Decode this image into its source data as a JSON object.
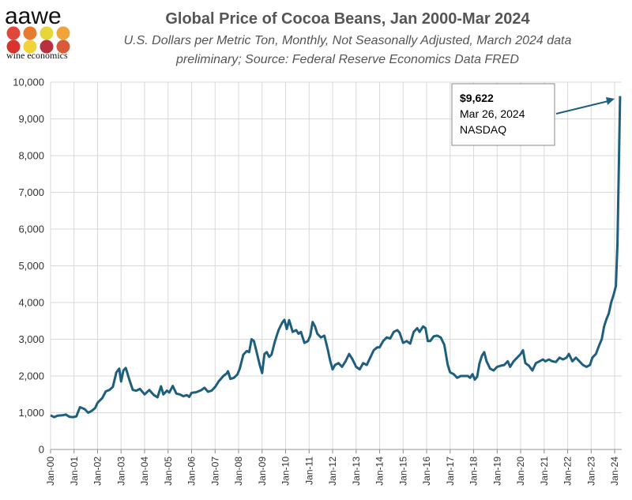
{
  "logo": {
    "text": "aawe",
    "subtitle": "wine economics",
    "dot_colors": [
      "#e0483c",
      "#e67b2f",
      "#e6d63a",
      "#f0a43a",
      "#d9332d",
      "#f2d23a",
      "#b8323e",
      "#d85a3a"
    ]
  },
  "colors": {
    "line": "#1f5f7e",
    "grid": "#d9d9d9",
    "plot_bg": "#ffffff",
    "arrow": "#1f5f7e"
  },
  "chart_data": {
    "type": "line",
    "title": "Global Price of Cocoa Beans, Jan 2000-Mar 2024",
    "subtitle_lines": [
      "U.S. Dollars per Metric Ton, Monthly, Not Seasonally Adjusted, March 2024 data",
      "preliminary; Source: Federal Reserve Economics Data FRED"
    ],
    "xlabel": "",
    "ylabel": "",
    "xlim": [
      2000.0,
      2024.3
    ],
    "ylim": [
      0,
      10000
    ],
    "yticks": [
      0,
      1000,
      2000,
      3000,
      4000,
      5000,
      6000,
      7000,
      8000,
      9000,
      10000
    ],
    "ytick_labels": [
      "0",
      "1,000",
      "2,000",
      "3,000",
      "4,000",
      "5,000",
      "6,000",
      "7,000",
      "8,000",
      "9,000",
      "10,000"
    ],
    "xticks": [
      2000,
      2001,
      2002,
      2003,
      2004,
      2005,
      2006,
      2007,
      2008,
      2009,
      2010,
      2011,
      2012,
      2013,
      2014,
      2015,
      2016,
      2017,
      2018,
      2019,
      2020,
      2021,
      2022,
      2023,
      2024
    ],
    "xtick_labels": [
      "Jan-00",
      "Jan-01",
      "Jan-02",
      "Jan-03",
      "Jan-04",
      "Jan-05",
      "Jan-06",
      "Jan-07",
      "Jan-08",
      "Jan-09",
      "Jan-10",
      "Jan-11",
      "Jan-12",
      "Jan-13",
      "Jan-14",
      "Jan-15",
      "Jan-16",
      "Jan-17",
      "Jan-18",
      "Jan-19",
      "Jan-20",
      "Jan-21",
      "Jan-22",
      "Jan-23",
      "Jan-24"
    ],
    "grid": true,
    "series": [
      {
        "name": "Global Price of Cocoa Beans",
        "points": [
          [
            2000.0,
            930
          ],
          [
            2000.15,
            880
          ],
          [
            2000.3,
            920
          ],
          [
            2000.5,
            930
          ],
          [
            2000.65,
            950
          ],
          [
            2000.8,
            890
          ],
          [
            2000.95,
            880
          ],
          [
            2001.1,
            900
          ],
          [
            2001.25,
            1150
          ],
          [
            2001.45,
            1100
          ],
          [
            2001.6,
            1000
          ],
          [
            2001.75,
            1050
          ],
          [
            2001.9,
            1130
          ],
          [
            2002.0,
            1270
          ],
          [
            2002.2,
            1400
          ],
          [
            2002.35,
            1580
          ],
          [
            2002.5,
            1620
          ],
          [
            2002.65,
            1700
          ],
          [
            2002.8,
            2100
          ],
          [
            2002.92,
            2200
          ],
          [
            2003.0,
            1850
          ],
          [
            2003.1,
            2150
          ],
          [
            2003.2,
            2220
          ],
          [
            2003.35,
            1900
          ],
          [
            2003.5,
            1620
          ],
          [
            2003.65,
            1600
          ],
          [
            2003.8,
            1650
          ],
          [
            2004.0,
            1500
          ],
          [
            2004.2,
            1620
          ],
          [
            2004.4,
            1480
          ],
          [
            2004.55,
            1420
          ],
          [
            2004.7,
            1720
          ],
          [
            2004.8,
            1500
          ],
          [
            2004.95,
            1600
          ],
          [
            2005.05,
            1550
          ],
          [
            2005.2,
            1730
          ],
          [
            2005.35,
            1520
          ],
          [
            2005.5,
            1500
          ],
          [
            2005.65,
            1450
          ],
          [
            2005.8,
            1480
          ],
          [
            2005.9,
            1430
          ],
          [
            2006.0,
            1540
          ],
          [
            2006.2,
            1560
          ],
          [
            2006.4,
            1610
          ],
          [
            2006.55,
            1680
          ],
          [
            2006.7,
            1570
          ],
          [
            2006.85,
            1600
          ],
          [
            2007.0,
            1700
          ],
          [
            2007.15,
            1850
          ],
          [
            2007.35,
            2000
          ],
          [
            2007.5,
            2070
          ],
          [
            2007.55,
            2130
          ],
          [
            2007.65,
            1920
          ],
          [
            2007.8,
            1950
          ],
          [
            2007.95,
            2040
          ],
          [
            2008.05,
            2200
          ],
          [
            2008.2,
            2580
          ],
          [
            2008.35,
            2680
          ],
          [
            2008.45,
            2650
          ],
          [
            2008.55,
            3000
          ],
          [
            2008.65,
            2950
          ],
          [
            2008.75,
            2700
          ],
          [
            2008.9,
            2300
          ],
          [
            2009.0,
            2080
          ],
          [
            2009.1,
            2600
          ],
          [
            2009.2,
            2650
          ],
          [
            2009.3,
            2520
          ],
          [
            2009.4,
            2580
          ],
          [
            2009.55,
            2950
          ],
          [
            2009.7,
            3250
          ],
          [
            2009.85,
            3450
          ],
          [
            2009.95,
            3530
          ],
          [
            2010.05,
            3280
          ],
          [
            2010.15,
            3520
          ],
          [
            2010.3,
            3200
          ],
          [
            2010.45,
            3250
          ],
          [
            2010.55,
            3150
          ],
          [
            2010.65,
            3200
          ],
          [
            2010.8,
            2900
          ],
          [
            2010.95,
            2950
          ],
          [
            2011.05,
            3100
          ],
          [
            2011.15,
            3470
          ],
          [
            2011.25,
            3350
          ],
          [
            2011.35,
            3150
          ],
          [
            2011.5,
            3050
          ],
          [
            2011.65,
            3100
          ],
          [
            2011.8,
            2700
          ],
          [
            2011.9,
            2400
          ],
          [
            2012.0,
            2180
          ],
          [
            2012.1,
            2300
          ],
          [
            2012.25,
            2350
          ],
          [
            2012.4,
            2250
          ],
          [
            2012.55,
            2400
          ],
          [
            2012.7,
            2600
          ],
          [
            2012.85,
            2450
          ],
          [
            2013.0,
            2250
          ],
          [
            2013.15,
            2180
          ],
          [
            2013.3,
            2350
          ],
          [
            2013.45,
            2300
          ],
          [
            2013.6,
            2500
          ],
          [
            2013.75,
            2700
          ],
          [
            2013.9,
            2780
          ],
          [
            2014.0,
            2780
          ],
          [
            2014.15,
            2950
          ],
          [
            2014.3,
            3050
          ],
          [
            2014.45,
            3020
          ],
          [
            2014.6,
            3200
          ],
          [
            2014.75,
            3250
          ],
          [
            2014.85,
            3180
          ],
          [
            2015.0,
            2900
          ],
          [
            2015.15,
            2950
          ],
          [
            2015.3,
            2880
          ],
          [
            2015.45,
            3200
          ],
          [
            2015.6,
            3300
          ],
          [
            2015.7,
            3200
          ],
          [
            2015.85,
            3350
          ],
          [
            2015.95,
            3300
          ],
          [
            2016.05,
            2950
          ],
          [
            2016.15,
            2950
          ],
          [
            2016.3,
            3080
          ],
          [
            2016.45,
            3100
          ],
          [
            2016.6,
            3050
          ],
          [
            2016.75,
            2850
          ],
          [
            2016.9,
            2300
          ],
          [
            2017.0,
            2100
          ],
          [
            2017.15,
            2050
          ],
          [
            2017.3,
            1950
          ],
          [
            2017.45,
            2000
          ],
          [
            2017.6,
            2000
          ],
          [
            2017.75,
            2000
          ],
          [
            2017.85,
            1950
          ],
          [
            2017.95,
            2050
          ],
          [
            2018.05,
            1900
          ],
          [
            2018.15,
            1980
          ],
          [
            2018.25,
            2350
          ],
          [
            2018.35,
            2550
          ],
          [
            2018.45,
            2650
          ],
          [
            2018.55,
            2400
          ],
          [
            2018.7,
            2200
          ],
          [
            2018.85,
            2150
          ],
          [
            2019.0,
            2250
          ],
          [
            2019.15,
            2280
          ],
          [
            2019.3,
            2300
          ],
          [
            2019.45,
            2400
          ],
          [
            2019.55,
            2250
          ],
          [
            2019.7,
            2400
          ],
          [
            2019.85,
            2500
          ],
          [
            2020.0,
            2600
          ],
          [
            2020.1,
            2700
          ],
          [
            2020.2,
            2350
          ],
          [
            2020.35,
            2280
          ],
          [
            2020.5,
            2150
          ],
          [
            2020.65,
            2350
          ],
          [
            2020.8,
            2400
          ],
          [
            2020.95,
            2450
          ],
          [
            2021.05,
            2400
          ],
          [
            2021.2,
            2450
          ],
          [
            2021.35,
            2400
          ],
          [
            2021.5,
            2380
          ],
          [
            2021.65,
            2500
          ],
          [
            2021.8,
            2450
          ],
          [
            2021.95,
            2500
          ],
          [
            2022.05,
            2600
          ],
          [
            2022.2,
            2400
          ],
          [
            2022.35,
            2500
          ],
          [
            2022.5,
            2400
          ],
          [
            2022.65,
            2300
          ],
          [
            2022.8,
            2250
          ],
          [
            2022.95,
            2300
          ],
          [
            2023.05,
            2500
          ],
          [
            2023.2,
            2600
          ],
          [
            2023.35,
            2850
          ],
          [
            2023.45,
            3000
          ],
          [
            2023.55,
            3350
          ],
          [
            2023.65,
            3550
          ],
          [
            2023.75,
            3700
          ],
          [
            2023.85,
            4000
          ],
          [
            2023.95,
            4200
          ],
          [
            2024.05,
            4450
          ],
          [
            2024.12,
            5600
          ],
          [
            2024.2,
            8500
          ],
          [
            2024.23,
            9622
          ]
        ]
      }
    ],
    "annotation": {
      "value_label": "$9,622",
      "date_label": "Mar 26, 2024",
      "source_label": "NASDAQ",
      "point": [
        2024.23,
        9622
      ]
    }
  }
}
